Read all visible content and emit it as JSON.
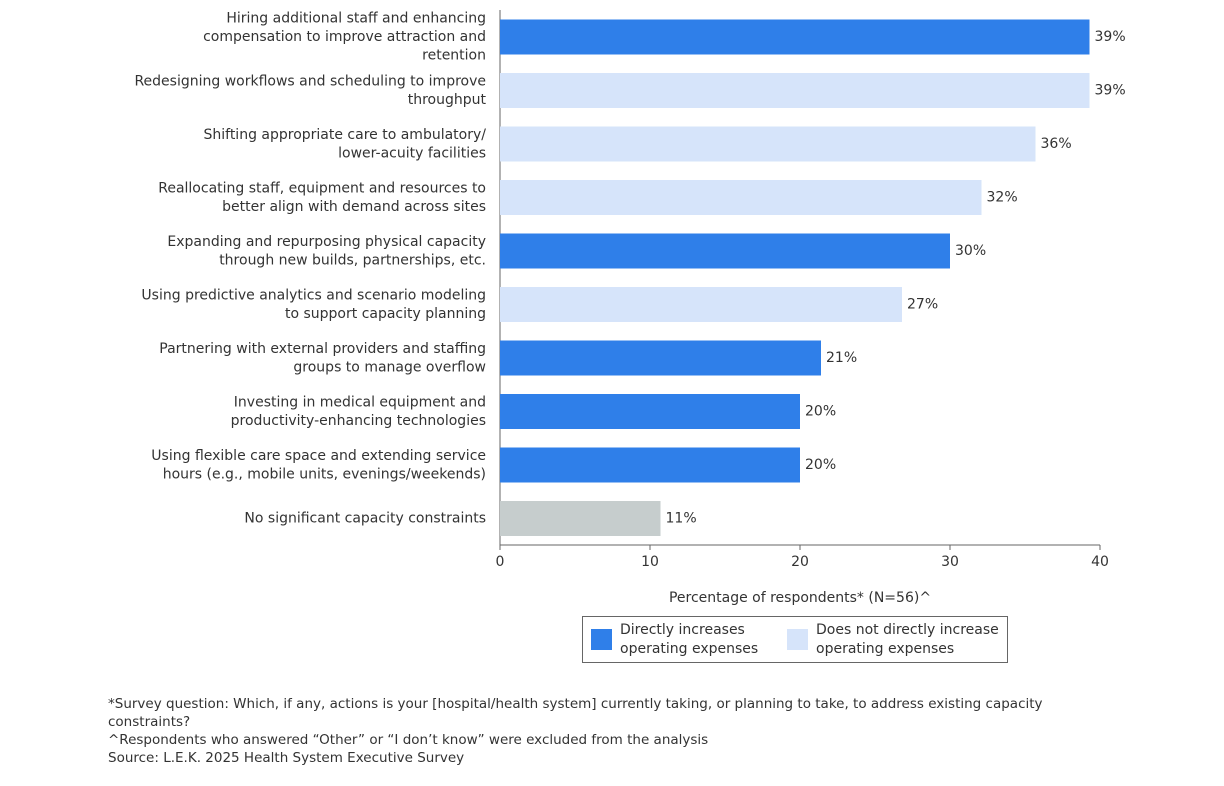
{
  "chart_data": {
    "type": "bar",
    "orientation": "horizontal",
    "categories": [
      [
        "Hiring additional staff and enhancing",
        "compensation to improve attraction and",
        "retention"
      ],
      [
        "Redesigning workflows and scheduling to improve",
        "throughput"
      ],
      [
        "Shifting appropriate care to ambulatory/",
        "lower-acuity facilities"
      ],
      [
        "Reallocating staff, equipment and resources to",
        "better align with demand across sites"
      ],
      [
        "Expanding and repurposing physical capacity",
        "through new builds, partnerships, etc."
      ],
      [
        "Using predictive analytics and scenario modeling",
        "to support capacity planning"
      ],
      [
        "Partnering with external providers and staffing",
        "groups to manage overflow"
      ],
      [
        "Investing in medical equipment and",
        "productivity-enhancing technologies"
      ],
      [
        "Using flexible care space and extending service",
        "hours (e.g., mobile units, evenings/weekends)"
      ],
      [
        "No significant capacity constraints"
      ]
    ],
    "values": [
      39.3,
      39.3,
      35.7,
      32.1,
      30,
      26.8,
      21.4,
      20,
      20,
      10.7
    ],
    "value_labels": [
      "39%",
      "39%",
      "36%",
      "32%",
      "30%",
      "27%",
      "21%",
      "20%",
      "20%",
      "11%"
    ],
    "colors": [
      "#2f7fe9",
      "#d6e4fa",
      "#d6e4fa",
      "#d6e4fa",
      "#2f7fe9",
      "#d6e4fa",
      "#2f7fe9",
      "#2f7fe9",
      "#2f7fe9",
      "#c6cdcd"
    ],
    "xlim": [
      0,
      40
    ],
    "xticks": [
      0,
      10,
      20,
      30,
      40
    ],
    "xlabel": "Percentage of respondents* (N=56)^",
    "legend": [
      {
        "name": "Directly increases operating expenses",
        "color": "#2f7fe9"
      },
      {
        "name": "Does not directly increase operating expenses",
        "color": "#d6e4fa"
      }
    ],
    "notes": [
      "*Survey question: Which, if any, actions is your [hospital/health system] currently taking, or planning to take, to address existing capacity constraints?",
      "^Respondents who answered “Other” or “I don’t know” were excluded from the analysis",
      "Source: L.E.K. 2025 Health System Executive Survey"
    ]
  }
}
